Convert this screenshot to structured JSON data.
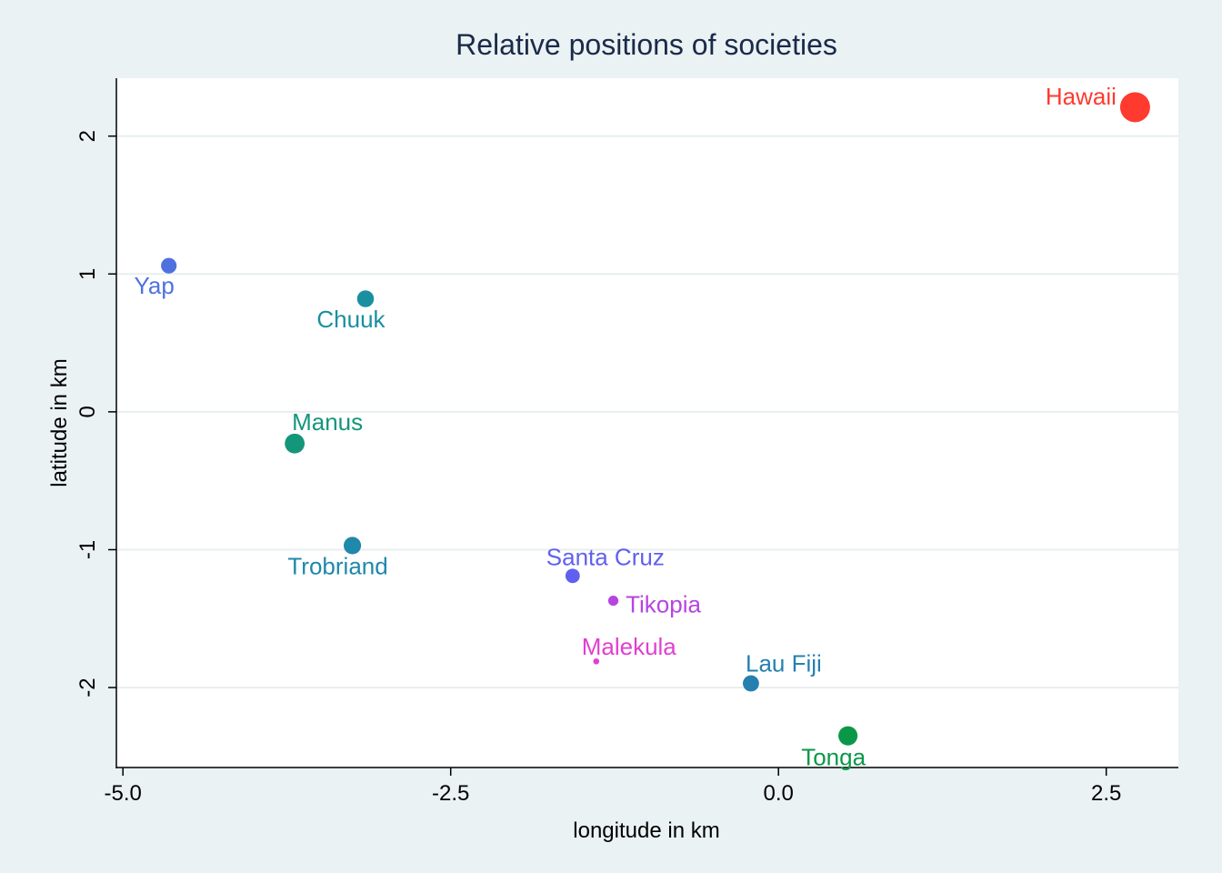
{
  "chart_data": {
    "type": "scatter",
    "title": "Relative positions of societies",
    "xlabel": "longitude in km",
    "ylabel": "latitude in km",
    "xlim": [
      -5.05,
      3.05
    ],
    "ylim": [
      -2.58,
      2.42
    ],
    "xticks": [
      {
        "value": -5.0,
        "label": "-5.0"
      },
      {
        "value": -2.5,
        "label": "-2.5"
      },
      {
        "value": 0.0,
        "label": "0.0"
      },
      {
        "value": 2.5,
        "label": "2.5"
      }
    ],
    "yticks": [
      {
        "value": -2,
        "label": "-2"
      },
      {
        "value": -1,
        "label": "-1"
      },
      {
        "value": 0,
        "label": "0"
      },
      {
        "value": 1,
        "label": "1"
      },
      {
        "value": 2,
        "label": "2"
      }
    ],
    "grid": "horizontal",
    "legend": "none",
    "points": [
      {
        "label": "Hawaii",
        "x": 2.72,
        "y": 2.21,
        "size": 5.0,
        "color": "#ff3a2f",
        "label_pos": "left"
      },
      {
        "label": "Yap",
        "x": -4.65,
        "y": 1.06,
        "size": 2.6,
        "color": "#4f71e0",
        "label_pos": "below"
      },
      {
        "label": "Chuuk",
        "x": -3.15,
        "y": 0.82,
        "size": 2.8,
        "color": "#1a8fa0",
        "label_pos": "below"
      },
      {
        "label": "Manus",
        "x": -3.69,
        "y": -0.23,
        "size": 3.3,
        "color": "#14967a",
        "label_pos": "above"
      },
      {
        "label": "Trobriand",
        "x": -3.25,
        "y": -0.97,
        "size": 2.9,
        "color": "#2088aa",
        "label_pos": "below"
      },
      {
        "label": "Santa Cruz",
        "x": -1.57,
        "y": -1.19,
        "size": 2.4,
        "color": "#6060f0",
        "label_pos": "above"
      },
      {
        "label": "Tikopia",
        "x": -1.26,
        "y": -1.37,
        "size": 1.7,
        "color": "#b744e0",
        "label_pos": "right"
      },
      {
        "label": "Malekula",
        "x": -1.39,
        "y": -1.81,
        "size": 1.0,
        "color": "#e040d0",
        "label_pos": "above"
      },
      {
        "label": "Lau Fiji",
        "x": -0.21,
        "y": -1.97,
        "size": 2.7,
        "color": "#2580b0",
        "label_pos": "above"
      },
      {
        "label": "Tonga",
        "x": 0.53,
        "y": -2.35,
        "size": 3.2,
        "color": "#0a9848",
        "label_pos": "below"
      }
    ]
  },
  "colors": {
    "background": "#eaf2f3",
    "plot_background": "#ffffff",
    "gridline": "#e8eeef",
    "axis": "#000000",
    "title": "#1a2a4a"
  }
}
